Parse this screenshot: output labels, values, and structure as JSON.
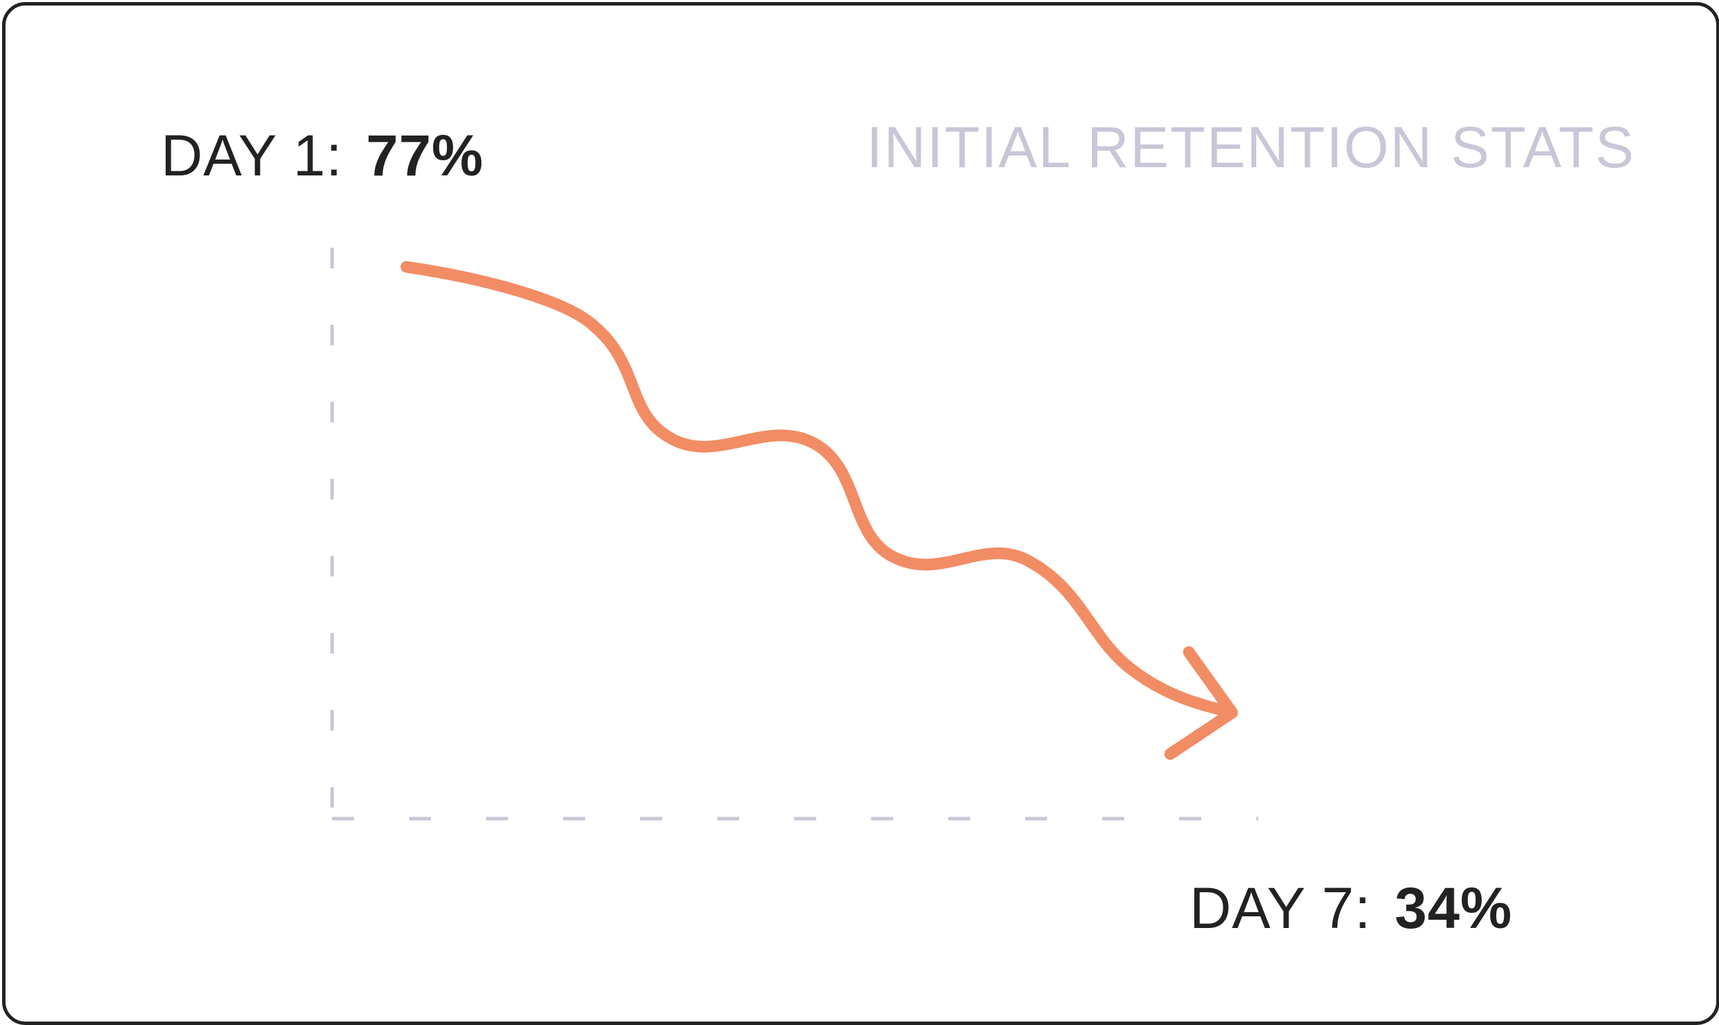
{
  "chart_data": {
    "type": "line",
    "title": "INITIAL RETENTION STATS",
    "xlabel": "",
    "ylabel": "",
    "points": [
      {
        "day_label": "DAY 1:",
        "value_label": "77%",
        "value": 77
      },
      {
        "day_label": "DAY 7:",
        "value_label": "34%",
        "value": 34
      }
    ],
    "grid": false,
    "axes_style": "dashed",
    "colors": {
      "line": "#f28c64",
      "axis": "#c9c6d8",
      "text": "#222222",
      "title": "#c9c6d8"
    }
  }
}
